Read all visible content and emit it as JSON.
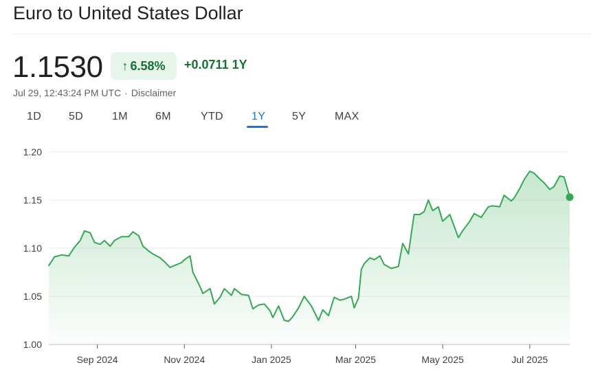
{
  "header": {
    "title": "Euro to United States Dollar",
    "price": "1.1530",
    "change_percent": "6.58%",
    "change_value": "+0.0711",
    "change_period": "1Y",
    "timestamp": "Jul 29, 12:43:24 PM UTC",
    "disclaimer": "Disclaimer"
  },
  "ranges": [
    {
      "label": "1D",
      "active": false
    },
    {
      "label": "5D",
      "active": false
    },
    {
      "label": "1M",
      "active": false
    },
    {
      "label": "6M",
      "active": false
    },
    {
      "label": "YTD",
      "active": false
    },
    {
      "label": "1Y",
      "active": true
    },
    {
      "label": "5Y",
      "active": false
    },
    {
      "label": "MAX",
      "active": false
    }
  ],
  "colors": {
    "line": "#34a853",
    "accent": "#1a73e8",
    "positive": "#137333",
    "badge_bg": "#e6f4ea",
    "grid": "#e8eaed"
  },
  "chart_data": {
    "type": "area",
    "title": "",
    "xlabel": "",
    "ylabel": "",
    "ylim": [
      1.0,
      1.2
    ],
    "yticks": [
      "1.20",
      "1.15",
      "1.10",
      "1.05",
      "1.00"
    ],
    "xticks": [
      {
        "label": "Sep 2024",
        "date": "2024-09-01"
      },
      {
        "label": "Nov 2024",
        "date": "2024-11-01"
      },
      {
        "label": "Jan 2025",
        "date": "2025-01-01"
      },
      {
        "label": "Mar 2025",
        "date": "2025-03-01"
      },
      {
        "label": "May 2025",
        "date": "2025-05-01"
      },
      {
        "label": "Jul 2025",
        "date": "2025-07-01"
      }
    ],
    "grid": true,
    "series": [
      {
        "points": [
          [
            "2024-07-29",
            1.082
          ],
          [
            "2024-08-02",
            1.091
          ],
          [
            "2024-08-07",
            1.093
          ],
          [
            "2024-08-12",
            1.092
          ],
          [
            "2024-08-16",
            1.101
          ],
          [
            "2024-08-20",
            1.108
          ],
          [
            "2024-08-23",
            1.118
          ],
          [
            "2024-08-27",
            1.116
          ],
          [
            "2024-08-30",
            1.106
          ],
          [
            "2024-09-03",
            1.104
          ],
          [
            "2024-09-06",
            1.108
          ],
          [
            "2024-09-10",
            1.102
          ],
          [
            "2024-09-13",
            1.108
          ],
          [
            "2024-09-18",
            1.112
          ],
          [
            "2024-09-23",
            1.112
          ],
          [
            "2024-09-26",
            1.117
          ],
          [
            "2024-09-30",
            1.113
          ],
          [
            "2024-10-03",
            1.102
          ],
          [
            "2024-10-07",
            1.097
          ],
          [
            "2024-10-10",
            1.094
          ],
          [
            "2024-10-15",
            1.09
          ],
          [
            "2024-10-18",
            1.086
          ],
          [
            "2024-10-22",
            1.08
          ],
          [
            "2024-10-25",
            1.082
          ],
          [
            "2024-10-30",
            1.085
          ],
          [
            "2024-11-01",
            1.088
          ],
          [
            "2024-11-05",
            1.092
          ],
          [
            "2024-11-07",
            1.075
          ],
          [
            "2024-11-11",
            1.063
          ],
          [
            "2024-11-14",
            1.053
          ],
          [
            "2024-11-19",
            1.058
          ],
          [
            "2024-11-22",
            1.042
          ],
          [
            "2024-11-26",
            1.049
          ],
          [
            "2024-11-29",
            1.058
          ],
          [
            "2024-12-04",
            1.051
          ],
          [
            "2024-12-06",
            1.058
          ],
          [
            "2024-12-11",
            1.052
          ],
          [
            "2024-12-16",
            1.051
          ],
          [
            "2024-12-19",
            1.037
          ],
          [
            "2024-12-23",
            1.041
          ],
          [
            "2024-12-27",
            1.042
          ],
          [
            "2024-12-31",
            1.035
          ],
          [
            "2025-01-02",
            1.028
          ],
          [
            "2025-01-06",
            1.04
          ],
          [
            "2025-01-10",
            1.025
          ],
          [
            "2025-01-13",
            1.024
          ],
          [
            "2025-01-16",
            1.029
          ],
          [
            "2025-01-20",
            1.038
          ],
          [
            "2025-01-24",
            1.05
          ],
          [
            "2025-01-29",
            1.04
          ],
          [
            "2025-02-03",
            1.025
          ],
          [
            "2025-02-06",
            1.036
          ],
          [
            "2025-02-10",
            1.03
          ],
          [
            "2025-02-14",
            1.049
          ],
          [
            "2025-02-18",
            1.046
          ],
          [
            "2025-02-21",
            1.047
          ],
          [
            "2025-02-26",
            1.05
          ],
          [
            "2025-02-28",
            1.038
          ],
          [
            "2025-03-03",
            1.048
          ],
          [
            "2025-03-05",
            1.078
          ],
          [
            "2025-03-07",
            1.084
          ],
          [
            "2025-03-11",
            1.09
          ],
          [
            "2025-03-14",
            1.088
          ],
          [
            "2025-03-18",
            1.092
          ],
          [
            "2025-03-21",
            1.083
          ],
          [
            "2025-03-26",
            1.079
          ],
          [
            "2025-03-31",
            1.081
          ],
          [
            "2025-04-03",
            1.105
          ],
          [
            "2025-04-07",
            1.094
          ],
          [
            "2025-04-11",
            1.135
          ],
          [
            "2025-04-15",
            1.135
          ],
          [
            "2025-04-18",
            1.138
          ],
          [
            "2025-04-21",
            1.15
          ],
          [
            "2025-04-24",
            1.139
          ],
          [
            "2025-04-28",
            1.143
          ],
          [
            "2025-05-01",
            1.128
          ],
          [
            "2025-05-06",
            1.135
          ],
          [
            "2025-05-09",
            1.123
          ],
          [
            "2025-05-12",
            1.111
          ],
          [
            "2025-05-15",
            1.118
          ],
          [
            "2025-05-20",
            1.128
          ],
          [
            "2025-05-23",
            1.136
          ],
          [
            "2025-05-28",
            1.132
          ],
          [
            "2025-06-02",
            1.143
          ],
          [
            "2025-06-05",
            1.144
          ],
          [
            "2025-06-10",
            1.143
          ],
          [
            "2025-06-13",
            1.155
          ],
          [
            "2025-06-18",
            1.149
          ],
          [
            "2025-06-20",
            1.152
          ],
          [
            "2025-06-24",
            1.162
          ],
          [
            "2025-06-27",
            1.171
          ],
          [
            "2025-07-01",
            1.18
          ],
          [
            "2025-07-04",
            1.178
          ],
          [
            "2025-07-08",
            1.172
          ],
          [
            "2025-07-11",
            1.168
          ],
          [
            "2025-07-15",
            1.161
          ],
          [
            "2025-07-18",
            1.164
          ],
          [
            "2025-07-22",
            1.175
          ],
          [
            "2025-07-25",
            1.174
          ],
          [
            "2025-07-28",
            1.159
          ],
          [
            "2025-07-29",
            1.153
          ]
        ]
      }
    ]
  }
}
